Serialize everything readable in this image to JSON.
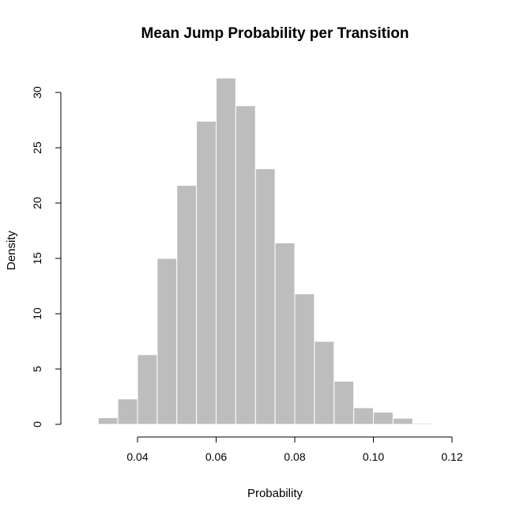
{
  "chart_data": {
    "type": "bar",
    "title": "Mean Jump Probability per Transition",
    "xlabel": "Probability",
    "ylabel": "Density",
    "xlim": [
      0.03,
      0.12
    ],
    "ylim": [
      0,
      30
    ],
    "x_ticks": [
      {
        "value": 0.04,
        "label": "0.04"
      },
      {
        "value": 0.06,
        "label": "0.06"
      },
      {
        "value": 0.08,
        "label": "0.08"
      },
      {
        "value": 0.1,
        "label": "0.10"
      },
      {
        "value": 0.12,
        "label": "0.12"
      }
    ],
    "y_ticks": [
      {
        "value": 0,
        "label": "0"
      },
      {
        "value": 5,
        "label": "5"
      },
      {
        "value": 10,
        "label": "10"
      },
      {
        "value": 15,
        "label": "15"
      },
      {
        "value": 20,
        "label": "20"
      },
      {
        "value": 25,
        "label": "25"
      },
      {
        "value": 30,
        "label": "30"
      }
    ],
    "bin_width": 0.005,
    "bins": [
      {
        "x0": 0.03,
        "x1": 0.035,
        "density": 0.6
      },
      {
        "x0": 0.035,
        "x1": 0.04,
        "density": 2.3
      },
      {
        "x0": 0.04,
        "x1": 0.045,
        "density": 6.3
      },
      {
        "x0": 0.045,
        "x1": 0.05,
        "density": 15.0
      },
      {
        "x0": 0.05,
        "x1": 0.055,
        "density": 21.6
      },
      {
        "x0": 0.055,
        "x1": 0.06,
        "density": 27.4
      },
      {
        "x0": 0.06,
        "x1": 0.065,
        "density": 31.3
      },
      {
        "x0": 0.065,
        "x1": 0.07,
        "density": 28.8
      },
      {
        "x0": 0.07,
        "x1": 0.075,
        "density": 23.1
      },
      {
        "x0": 0.075,
        "x1": 0.08,
        "density": 16.4
      },
      {
        "x0": 0.08,
        "x1": 0.085,
        "density": 11.8
      },
      {
        "x0": 0.085,
        "x1": 0.09,
        "density": 7.5
      },
      {
        "x0": 0.09,
        "x1": 0.095,
        "density": 3.9
      },
      {
        "x0": 0.095,
        "x1": 0.1,
        "density": 1.5
      },
      {
        "x0": 0.1,
        "x1": 0.105,
        "density": 1.1
      },
      {
        "x0": 0.105,
        "x1": 0.11,
        "density": 0.55
      },
      {
        "x0": 0.11,
        "x1": 0.115,
        "density": 0.1
      }
    ],
    "bar_color": "#bdbdbd",
    "bar_border_color": "#ffffff",
    "axis_color": "#000000",
    "grid": false,
    "legend": "none"
  }
}
